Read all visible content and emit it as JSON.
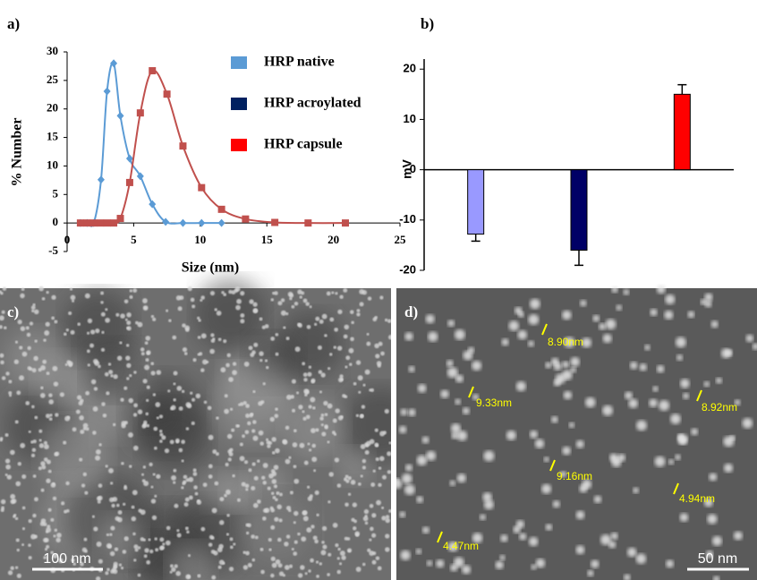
{
  "chart_data": [
    {
      "type": "line",
      "label": "a)",
      "x_label": "Size (nm)",
      "y_label": "% Number",
      "xlim": [
        0,
        25
      ],
      "ylim": [
        -5,
        30
      ],
      "xticks": [
        0,
        5,
        10,
        15,
        20,
        25
      ],
      "yticks": [
        -5,
        0,
        5,
        10,
        15,
        20,
        25,
        30
      ],
      "legend": [
        {
          "name": "HRP native",
          "color": "#5b9bd5"
        },
        {
          "name": "HRP acroylated",
          "color": "#002060"
        },
        {
          "name": "HRP capsule",
          "color": "#ff0000"
        }
      ],
      "series": [
        {
          "color": "#5b9bd5",
          "marker": "diamond",
          "x": [
            1,
            1.5,
            2,
            2.55,
            3,
            3.5,
            4,
            4.7,
            5.5,
            6.4,
            7.4,
            8.7,
            10.1,
            11.6
          ],
          "values": [
            0,
            0,
            0,
            7.6,
            23.1,
            28,
            18.8,
            11.3,
            8.2,
            3.3,
            0.2,
            0,
            0,
            0
          ]
        },
        {
          "color": "#c0504d",
          "marker": "square",
          "x": [
            1,
            1.5,
            2,
            2.5,
            3,
            3.5,
            4,
            4.7,
            5.5,
            6.4,
            7.5,
            8.7,
            10.1,
            11.6,
            13.4,
            15.6,
            18.1,
            20.9
          ],
          "values": [
            0,
            0,
            0,
            0,
            0,
            0,
            0.8,
            7.1,
            19.3,
            26.7,
            22.6,
            13.5,
            6.2,
            2.4,
            0.7,
            0.1,
            0,
            0
          ]
        }
      ]
    },
    {
      "type": "bar",
      "label": "b)",
      "y_label": "mV",
      "categories": [
        null,
        null,
        null
      ],
      "values": [
        -12.8,
        -16,
        15
      ],
      "errors": [
        1.4,
        3,
        1.9
      ],
      "colors": [
        "#9999ff",
        "#000066",
        "#ff0000"
      ],
      "ylim": [
        -20,
        22
      ],
      "yticks": [
        -20,
        -10,
        0,
        10,
        20
      ]
    }
  ],
  "images": [
    {
      "label": "c)",
      "scale_bar": "100 nm"
    },
    {
      "label": "d)",
      "scale_bar": "50 nm",
      "annotations": [
        "8.90nm",
        "9.33nm",
        "8.92nm",
        "9.16nm",
        "4.94nm",
        "4.47nm"
      ]
    }
  ]
}
